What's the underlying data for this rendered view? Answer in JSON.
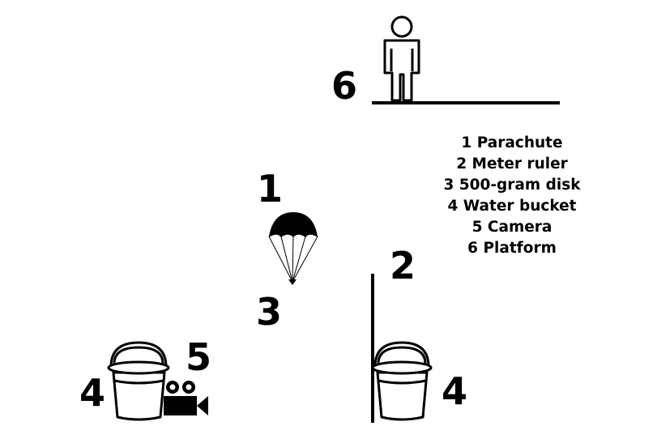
{
  "labels": {
    "person_number": "6",
    "parachute_number": "1",
    "disk_number": "3",
    "ruler_number": "2",
    "bucket_left_number": "4",
    "camera_number": "5",
    "bucket_right_number": "4"
  },
  "legend": [
    "1 Parachute",
    "2 Meter ruler",
    "3 500-gram disk",
    "4 Water bucket",
    "5 Camera",
    "6 Platform"
  ]
}
